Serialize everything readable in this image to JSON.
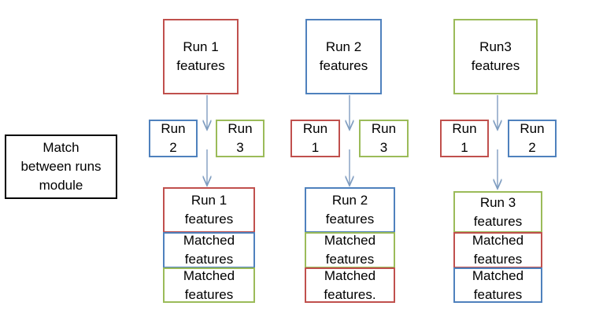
{
  "colors": {
    "run1": "#c0504d",
    "run2": "#4f81bd",
    "run3": "#9bbb59",
    "arrow": "#7f9dc0",
    "module": "#000000"
  },
  "module": {
    "label": "Match\nbetween runs\nmodule"
  },
  "columns": [
    {
      "top": "Run 1\nfeatures",
      "inputs": [
        "Run\n2",
        "Run\n3"
      ],
      "stack": [
        "Run 1\nfeatures",
        "Matched\nfeatures",
        "Matched\nfeatures"
      ]
    },
    {
      "top": "Run 2\nfeatures",
      "inputs": [
        "Run\n1",
        "Run\n3"
      ],
      "stack": [
        "Run 2\nfeatures",
        "Matched\nfeatures",
        "Matched\nfeatures."
      ]
    },
    {
      "top": "Run3\nfeatures",
      "inputs": [
        "Run\n1",
        "Run\n2"
      ],
      "stack": [
        "Run 3\nfeatures",
        "Matched\nfeatures",
        "Matched\nfeatures"
      ]
    }
  ]
}
